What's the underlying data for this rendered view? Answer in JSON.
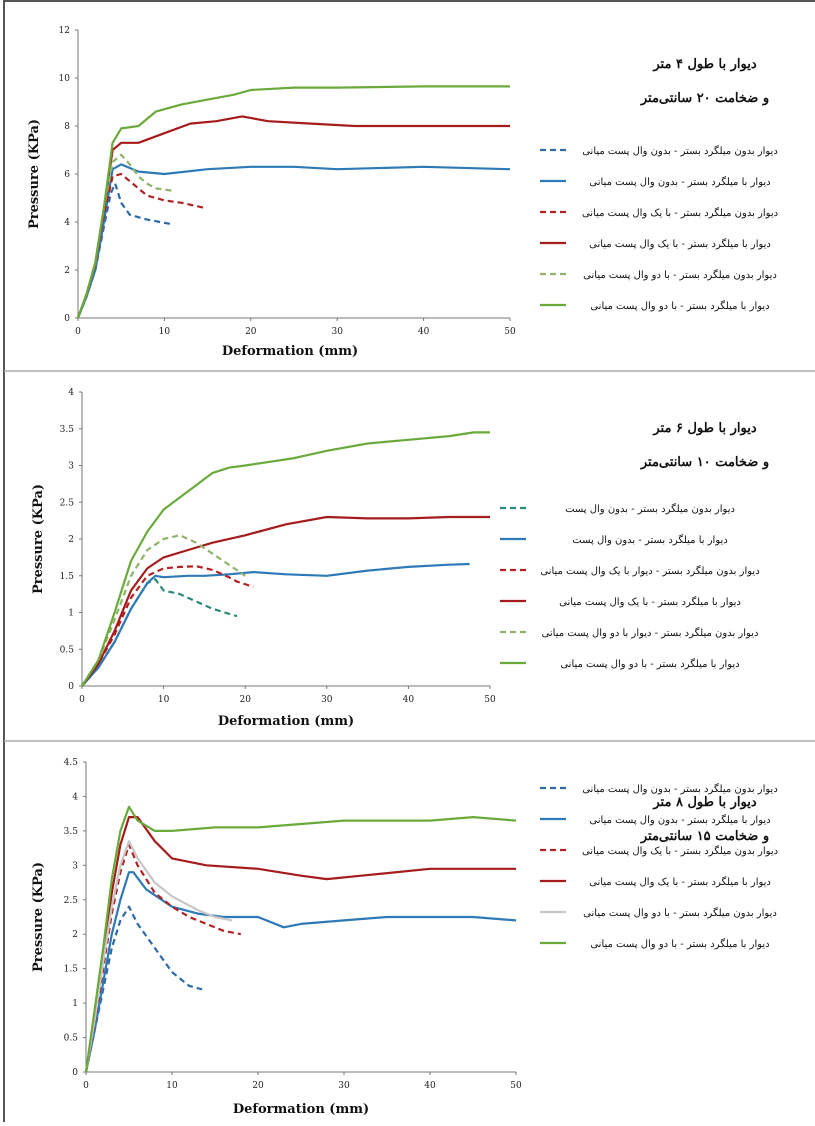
{
  "chart_data": [
    {
      "type": "line",
      "title_lines": [
        "دیوار با طول ۴ متر",
        "و ضخامت ۲۰ سانتی‌متر"
      ],
      "xlabel": "Deformation (mm)",
      "ylabel": "Pressure (KPa)",
      "xlim": [
        0,
        50
      ],
      "ylim": [
        0,
        12
      ],
      "xticks": [
        "0",
        "10",
        "20",
        "30",
        "40",
        "50"
      ],
      "yticks": [
        "0",
        "2",
        "4",
        "6",
        "8",
        "10",
        "12"
      ],
      "legend_position": "right",
      "series": [
        {
          "name": "دیوار بدون میلگرد بستر - بدون وال پست میانی",
          "color": "#2e6aa8",
          "dash": true,
          "x": [
            0,
            1,
            2,
            3,
            3.8,
            4.3,
            5,
            6,
            8,
            11
          ],
          "y": [
            0,
            0.9,
            2,
            3.8,
            5.2,
            5.6,
            4.8,
            4.3,
            4.1,
            3.9
          ]
        },
        {
          "name": "دیوار با میلگرد بستر - بدون وال پست میانی",
          "color": "#2e7ab8",
          "dash": false,
          "x": [
            0,
            1,
            2,
            3,
            4,
            5,
            7,
            10,
            15,
            20,
            25,
            30,
            40,
            50
          ],
          "y": [
            0,
            0.9,
            2,
            4,
            6.2,
            6.4,
            6.1,
            6.0,
            6.2,
            6.3,
            6.3,
            6.2,
            6.3,
            6.2
          ]
        },
        {
          "name": "دیوار بدون میلگرد بستر - با یک وال پست میانی",
          "color": "#b22222",
          "dash": true,
          "x": [
            0,
            1,
            2,
            3,
            4,
            5,
            6,
            8,
            10,
            12,
            14.5
          ],
          "y": [
            0,
            1,
            2.2,
            4.3,
            5.9,
            6.0,
            5.7,
            5.1,
            4.9,
            4.8,
            4.6
          ]
        },
        {
          "name": "دیوار با میلگرد بستر - با یک وال پست میانی",
          "color": "#a61c1c",
          "dash": false,
          "x": [
            0,
            1,
            2,
            3,
            4,
            5,
            7,
            10,
            13,
            16,
            19,
            22,
            27,
            32,
            40,
            50
          ],
          "y": [
            0,
            1,
            2.3,
            4.5,
            7.0,
            7.3,
            7.3,
            7.7,
            8.1,
            8.2,
            8.4,
            8.2,
            8.1,
            8.0,
            8.0,
            8.0
          ]
        },
        {
          "name": "دیوار بدون میلگرد بستر - با دو وال پست میانی",
          "color": "#8fb36a",
          "dash": true,
          "x": [
            0,
            1,
            2,
            3,
            4,
            5,
            6,
            7,
            8,
            9,
            11
          ],
          "y": [
            0,
            1,
            2.3,
            4.6,
            6.5,
            6.8,
            6.4,
            5.9,
            5.6,
            5.4,
            5.3
          ]
        },
        {
          "name": "دیوار با میلگرد بستر - با دو وال پست میانی",
          "color": "#6aaa3a",
          "dash": false,
          "x": [
            0,
            1,
            2,
            3,
            4,
            5,
            7,
            9,
            12,
            15,
            18,
            20,
            25,
            30,
            40,
            50
          ],
          "y": [
            0,
            1,
            2.3,
            4.6,
            7.3,
            7.9,
            8.0,
            8.6,
            8.9,
            9.1,
            9.3,
            9.5,
            9.6,
            9.6,
            9.65,
            9.65
          ]
        }
      ]
    },
    {
      "type": "line",
      "title_lines": [
        "دیوار با طول ۶ متر",
        "و ضخامت ۱۰ سانتی‌متر"
      ],
      "xlabel": "Deformation (mm)",
      "ylabel": "Pressure (KPa)",
      "xlim": [
        0,
        50
      ],
      "ylim": [
        0,
        4
      ],
      "xticks": [
        "0",
        "10",
        "20",
        "30",
        "40",
        "50"
      ],
      "yticks": [
        "0",
        "0.5",
        "1",
        "1.5",
        "2",
        "2.5",
        "3",
        "3.5",
        "4"
      ],
      "legend_position": "right",
      "series": [
        {
          "name": "دیوار بدون میلگرد بستر - بدون وال پست",
          "color": "#2b8a7a",
          "dash": true,
          "x": [
            0,
            2,
            4,
            6,
            8,
            9,
            10,
            12,
            14,
            16,
            19
          ],
          "y": [
            0,
            0.25,
            0.6,
            1.05,
            1.4,
            1.45,
            1.3,
            1.25,
            1.15,
            1.05,
            0.95
          ]
        },
        {
          "name": "دیوار با میلگرد بستر - بدون وال پست",
          "color": "#2e7ab8",
          "dash": false,
          "x": [
            0,
            2,
            4,
            6,
            8,
            9,
            10,
            13,
            15,
            18,
            21,
            25,
            30,
            35,
            40,
            45,
            47.5
          ],
          "y": [
            0,
            0.25,
            0.6,
            1.05,
            1.4,
            1.5,
            1.48,
            1.5,
            1.5,
            1.52,
            1.55,
            1.52,
            1.5,
            1.57,
            1.62,
            1.65,
            1.66
          ]
        },
        {
          "name": "دیوار بدون میلگرد بستر - دیوار با یک وال پست میانی",
          "color": "#b22222",
          "dash": true,
          "x": [
            0,
            2,
            4,
            6,
            8,
            10,
            12,
            14,
            16,
            18,
            19,
            21
          ],
          "y": [
            0,
            0.3,
            0.7,
            1.2,
            1.5,
            1.6,
            1.62,
            1.63,
            1.58,
            1.48,
            1.42,
            1.35
          ]
        },
        {
          "name": "دیوار با میلگرد بستر - با یک وال پست میانی",
          "color": "#a61c1c",
          "dash": false,
          "x": [
            0,
            2,
            4,
            6,
            8,
            10,
            13,
            16,
            20,
            25,
            30,
            35,
            40,
            45,
            50
          ],
          "y": [
            0,
            0.3,
            0.75,
            1.3,
            1.6,
            1.75,
            1.85,
            1.95,
            2.05,
            2.2,
            2.3,
            2.28,
            2.28,
            2.3,
            2.3
          ]
        },
        {
          "name": "دیوار بدون میلگرد بستر - دیوار با دو وال پست میانی",
          "color": "#8fb36a",
          "dash": true,
          "x": [
            0,
            2,
            4,
            6,
            8,
            10,
            12,
            14,
            16,
            18,
            20
          ],
          "y": [
            0,
            0.35,
            0.9,
            1.5,
            1.85,
            2.0,
            2.05,
            1.95,
            1.8,
            1.65,
            1.5
          ]
        },
        {
          "name": "دیوار با میلگرد بستر - با دو وال پست میانی",
          "color": "#6aaa3a",
          "dash": false,
          "x": [
            0,
            2,
            4,
            6,
            8,
            10,
            13,
            16,
            18,
            20,
            23,
            26,
            30,
            35,
            40,
            45,
            48,
            50
          ],
          "y": [
            0,
            0.35,
            1.0,
            1.7,
            2.1,
            2.4,
            2.65,
            2.9,
            2.97,
            3.0,
            3.05,
            3.1,
            3.2,
            3.3,
            3.35,
            3.4,
            3.45,
            3.45
          ]
        }
      ]
    },
    {
      "type": "line",
      "title_lines": [
        "دیوار با طول ۸ متر",
        "و ضخامت ۱۵ سانتی‌متر"
      ],
      "xlabel": "Deformation (mm)",
      "ylabel": "Pressure (KPa)",
      "xlim": [
        0,
        50
      ],
      "ylim": [
        0,
        4.5
      ],
      "xticks": [
        "0",
        "10",
        "20",
        "30",
        "40",
        "50"
      ],
      "yticks": [
        "0",
        "0.5",
        "1",
        "1.5",
        "2",
        "2.5",
        "3",
        "3.5",
        "4",
        "4.5"
      ],
      "legend_position": "right",
      "series": [
        {
          "name": "دیوار بدون میلگرد بستر - بدون وال پست میانی",
          "color": "#2e6aa8",
          "dash": true,
          "x": [
            0,
            1,
            2,
            3,
            4,
            5,
            6,
            8,
            10,
            12,
            13.5
          ],
          "y": [
            0,
            0.6,
            1.2,
            1.8,
            2.2,
            2.4,
            2.15,
            1.8,
            1.45,
            1.25,
            1.2
          ]
        },
        {
          "name": "دیوار با میلگرد بستر - بدون وال پست میانی",
          "color": "#2e7ab8",
          "dash": false,
          "x": [
            0,
            1,
            2,
            3,
            4,
            5,
            5.5,
            7,
            10,
            13,
            16,
            20,
            23,
            25,
            30,
            35,
            40,
            45,
            50
          ],
          "y": [
            0,
            0.6,
            1.3,
            2.0,
            2.5,
            2.9,
            2.9,
            2.65,
            2.4,
            2.3,
            2.25,
            2.25,
            2.1,
            2.15,
            2.2,
            2.25,
            2.25,
            2.25,
            2.2
          ]
        },
        {
          "name": "دیوار بدون میلگرد بستر - با یک وال پست میانی",
          "color": "#b22222",
          "dash": true,
          "x": [
            0,
            1,
            2,
            3,
            4,
            5,
            6,
            8,
            10,
            12,
            14,
            16,
            18
          ],
          "y": [
            0,
            0.7,
            1.5,
            2.3,
            2.9,
            3.3,
            3.0,
            2.6,
            2.4,
            2.25,
            2.15,
            2.05,
            2.0
          ]
        },
        {
          "name": "دیوار با میلگرد بستر - با یک وال پست میانی",
          "color": "#a61c1c",
          "dash": false,
          "x": [
            0,
            1,
            2,
            3,
            4,
            5,
            6,
            8,
            10,
            14,
            20,
            25,
            28,
            32,
            40,
            50
          ],
          "y": [
            0,
            0.8,
            1.7,
            2.6,
            3.3,
            3.7,
            3.7,
            3.35,
            3.1,
            3.0,
            2.95,
            2.85,
            2.8,
            2.85,
            2.95,
            2.95
          ]
        },
        {
          "name": "دیوار بدون میلگرد بستر - با دو وال پست میانی",
          "color": "#c7c7c7",
          "dash": false,
          "x": [
            0,
            1,
            2,
            3,
            4,
            5,
            6,
            8,
            10,
            13,
            15,
            17
          ],
          "y": [
            0,
            0.75,
            1.6,
            2.4,
            3.0,
            3.35,
            3.1,
            2.75,
            2.55,
            2.35,
            2.25,
            2.2
          ]
        },
        {
          "name": "دیوار با میلگرد بستر - با دو وال پست میانی",
          "color": "#6aaa3a",
          "dash": false,
          "x": [
            0,
            1,
            2,
            3,
            4,
            5,
            6,
            8,
            10,
            15,
            20,
            25,
            30,
            35,
            40,
            45,
            50
          ],
          "y": [
            0,
            0.9,
            1.8,
            2.8,
            3.5,
            3.85,
            3.65,
            3.5,
            3.5,
            3.55,
            3.55,
            3.6,
            3.65,
            3.65,
            3.65,
            3.7,
            3.65
          ]
        }
      ]
    }
  ]
}
